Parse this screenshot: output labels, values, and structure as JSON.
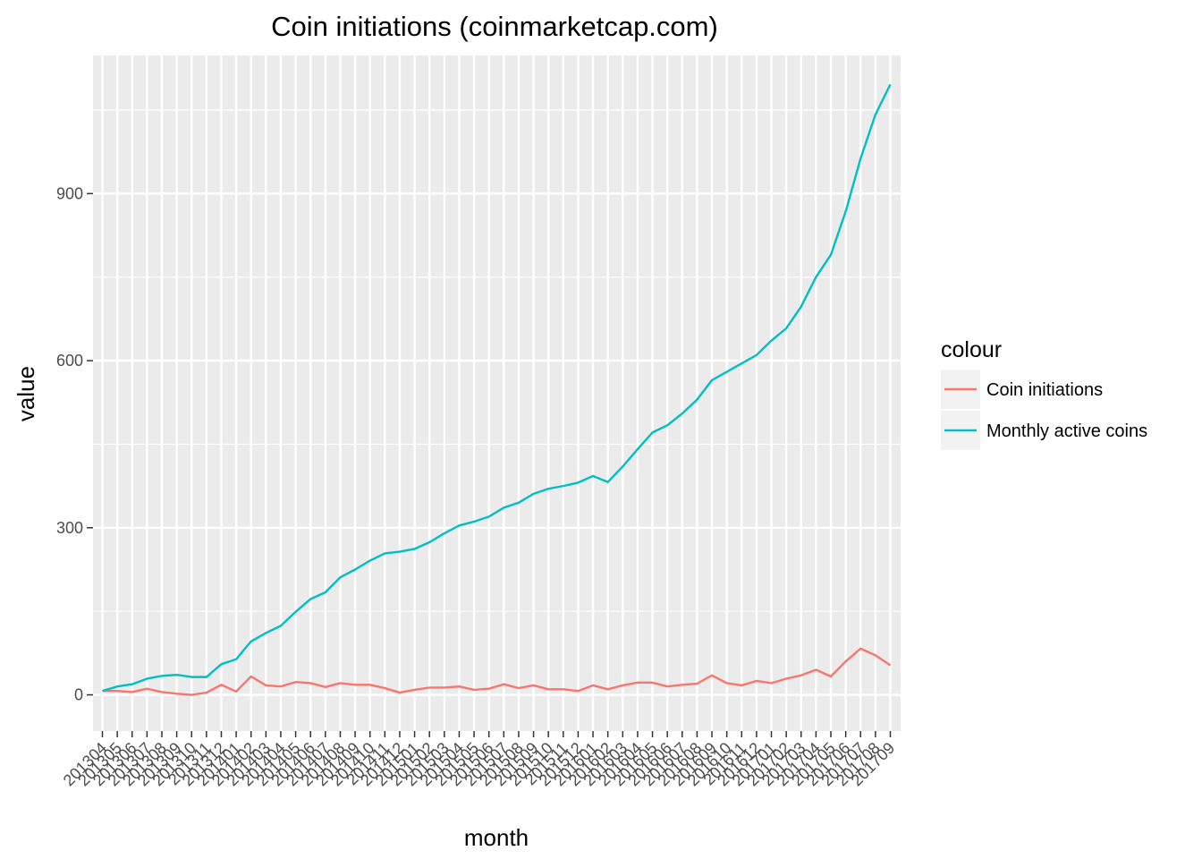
{
  "chart_data": {
    "type": "line",
    "title": "Coin initiations (coinmarketcap.com)",
    "xlabel": "month",
    "ylabel": "value",
    "ylim": [
      -65,
      1148
    ],
    "yticks": [
      0,
      300,
      600,
      900
    ],
    "grid": true,
    "legend_title": "colour",
    "legend_position": "right",
    "categories": [
      "201304",
      "201305",
      "201306",
      "201307",
      "201308",
      "201309",
      "201310",
      "201311",
      "201312",
      "201401",
      "201402",
      "201403",
      "201404",
      "201405",
      "201406",
      "201407",
      "201408",
      "201409",
      "201410",
      "201411",
      "201412",
      "201501",
      "201502",
      "201503",
      "201504",
      "201505",
      "201506",
      "201507",
      "201508",
      "201509",
      "201510",
      "201511",
      "201512",
      "201601",
      "201602",
      "201603",
      "201604",
      "201605",
      "201606",
      "201607",
      "201608",
      "201609",
      "201610",
      "201611",
      "201612",
      "201701",
      "201702",
      "201703",
      "201704",
      "201705",
      "201706",
      "201707",
      "201708",
      "201709"
    ],
    "series": [
      {
        "name": "Coin initiations",
        "color": "#F8766D",
        "values": [
          7,
          7,
          5,
          11,
          5,
          2,
          0,
          4,
          18,
          6,
          33,
          17,
          15,
          23,
          21,
          14,
          21,
          18,
          18,
          12,
          4,
          9,
          13,
          13,
          15,
          9,
          11,
          19,
          12,
          17,
          10,
          10,
          7,
          17,
          10,
          17,
          22,
          22,
          15,
          18,
          20,
          35,
          21,
          17,
          25,
          21,
          29,
          35,
          45,
          33,
          60,
          83,
          71,
          53
        ]
      },
      {
        "name": "Monthly active coins",
        "color": "#00BFC4",
        "values": [
          7,
          15,
          19,
          29,
          34,
          36,
          32,
          32,
          55,
          64,
          96,
          111,
          124,
          149,
          172,
          184,
          211,
          225,
          241,
          254,
          257,
          262,
          274,
          290,
          304,
          311,
          320,
          336,
          345,
          361,
          370,
          375,
          381,
          393,
          382,
          410,
          441,
          471,
          484,
          505,
          530,
          565,
          580,
          595,
          610,
          636,
          658,
          697,
          750,
          790,
          868,
          963,
          1042,
          1096
        ]
      }
    ]
  }
}
